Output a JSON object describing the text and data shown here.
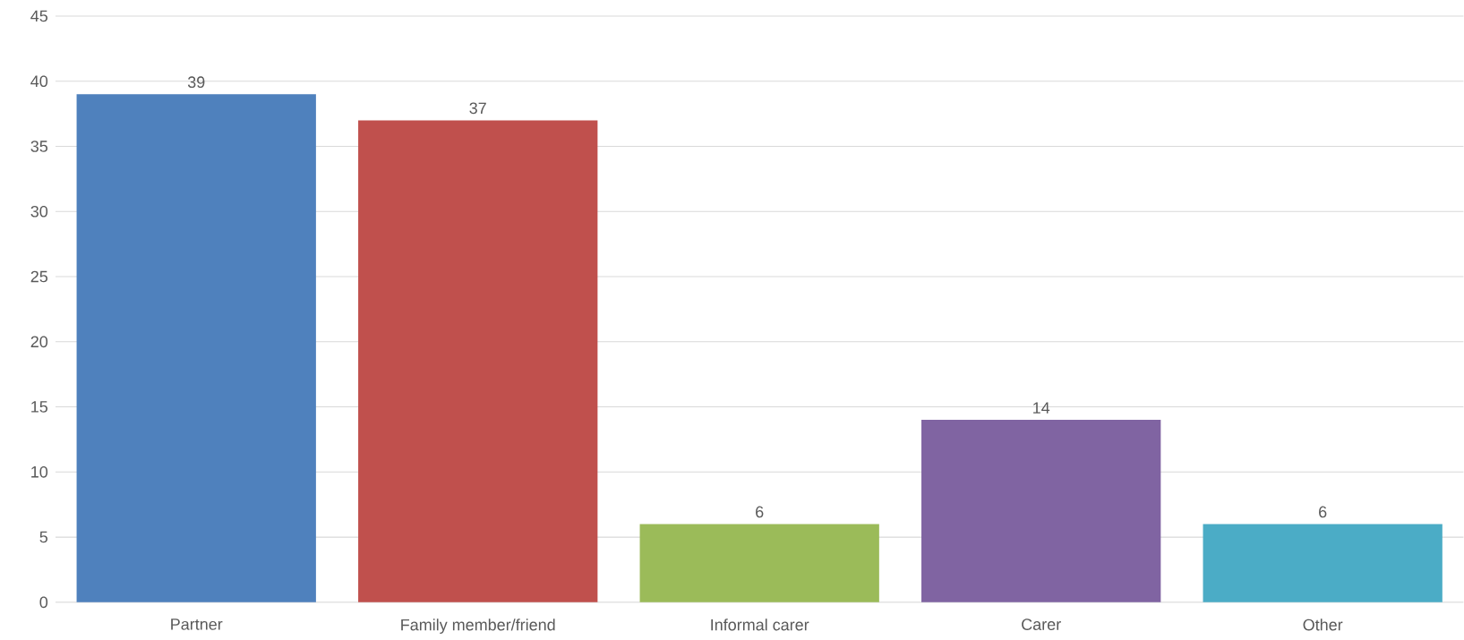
{
  "chart_data": {
    "type": "bar",
    "categories": [
      "Partner",
      "Family member/friend",
      "Informal carer",
      "Carer",
      "Other"
    ],
    "values": [
      39,
      37,
      6,
      14,
      6
    ],
    "colors": [
      "#4f81bd",
      "#c0504d",
      "#9bbb59",
      "#8064a2",
      "#4bacc6"
    ],
    "ylim": [
      0,
      45
    ],
    "yticks": [
      0,
      5,
      10,
      15,
      20,
      25,
      30,
      35,
      40,
      45
    ],
    "grid": "y",
    "data_labels": true
  }
}
